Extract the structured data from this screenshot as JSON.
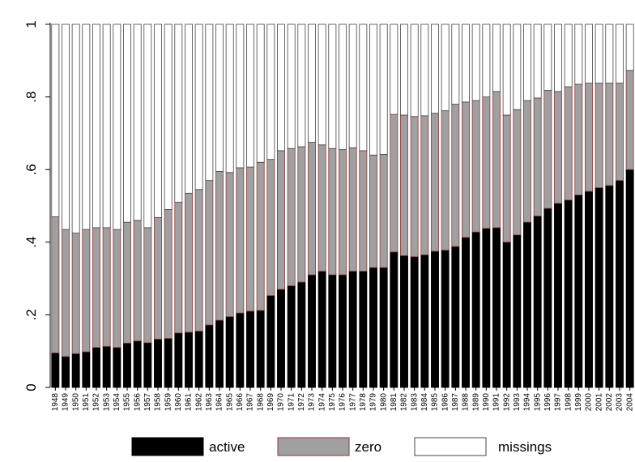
{
  "chart_data": {
    "type": "stacked_bar",
    "categories": [
      "1948",
      "1949",
      "1950",
      "1951",
      "1952",
      "1953",
      "1954",
      "1955",
      "1956",
      "1957",
      "1958",
      "1959",
      "1960",
      "1961",
      "1962",
      "1963",
      "1964",
      "1965",
      "1966",
      "1967",
      "1968",
      "1969",
      "1970",
      "1971",
      "1972",
      "1973",
      "1974",
      "1975",
      "1976",
      "1977",
      "1978",
      "1979",
      "1980",
      "1981",
      "1982",
      "1983",
      "1984",
      "1985",
      "1986",
      "1987",
      "1988",
      "1989",
      "1990",
      "1991",
      "1992",
      "1993",
      "1994",
      "1995",
      "1996",
      "1997",
      "1998",
      "1999",
      "2000",
      "2001",
      "2002",
      "2003",
      "2004"
    ],
    "series": [
      {
        "name": "active",
        "color": "#000000",
        "edgecolor": "#000000",
        "values": [
          0.095,
          0.085,
          0.093,
          0.098,
          0.11,
          0.113,
          0.11,
          0.122,
          0.128,
          0.123,
          0.133,
          0.135,
          0.15,
          0.152,
          0.155,
          0.172,
          0.185,
          0.195,
          0.205,
          0.21,
          0.212,
          0.253,
          0.27,
          0.28,
          0.29,
          0.31,
          0.32,
          0.31,
          0.31,
          0.32,
          0.32,
          0.33,
          0.33,
          0.373,
          0.363,
          0.36,
          0.365,
          0.375,
          0.378,
          0.388,
          0.413,
          0.428,
          0.438,
          0.44,
          0.4,
          0.42,
          0.455,
          0.472,
          0.493,
          0.507,
          0.516,
          0.53,
          0.54,
          0.55,
          0.556,
          0.57,
          0.6
        ]
      },
      {
        "name": "zero",
        "color": "#a0a0a0",
        "edgecolor": "#8b3a3a",
        "values": [
          0.375,
          0.35,
          0.332,
          0.337,
          0.33,
          0.327,
          0.325,
          0.333,
          0.332,
          0.317,
          0.335,
          0.355,
          0.36,
          0.383,
          0.39,
          0.398,
          0.41,
          0.397,
          0.4,
          0.397,
          0.408,
          0.375,
          0.382,
          0.378,
          0.373,
          0.365,
          0.348,
          0.348,
          0.345,
          0.34,
          0.332,
          0.31,
          0.312,
          0.379,
          0.387,
          0.386,
          0.383,
          0.38,
          0.384,
          0.392,
          0.373,
          0.362,
          0.362,
          0.375,
          0.35,
          0.345,
          0.335,
          0.325,
          0.325,
          0.308,
          0.312,
          0.305,
          0.298,
          0.288,
          0.282,
          0.268,
          0.273
        ]
      },
      {
        "name": "missings",
        "color": "#ffffff",
        "edgecolor": "#444444",
        "values": [
          0.53,
          0.565,
          0.575,
          0.565,
          0.56,
          0.56,
          0.565,
          0.545,
          0.54,
          0.56,
          0.532,
          0.51,
          0.49,
          0.465,
          0.455,
          0.43,
          0.405,
          0.408,
          0.395,
          0.393,
          0.38,
          0.372,
          0.348,
          0.342,
          0.337,
          0.325,
          0.332,
          0.342,
          0.345,
          0.34,
          0.348,
          0.36,
          0.358,
          0.248,
          0.25,
          0.254,
          0.252,
          0.245,
          0.238,
          0.22,
          0.214,
          0.21,
          0.2,
          0.185,
          0.25,
          0.235,
          0.21,
          0.203,
          0.182,
          0.185,
          0.172,
          0.165,
          0.162,
          0.162,
          0.162,
          0.162,
          0.127
        ]
      }
    ],
    "ylim": [
      0,
      1
    ],
    "yticks": [
      0,
      {
        "value": 0.2,
        "label": ".2"
      },
      {
        "value": 0.4,
        "label": ".4"
      },
      {
        "value": 0.6,
        "label": ".6"
      },
      {
        "value": 0.8,
        "label": ".8"
      },
      1
    ],
    "grid": false,
    "legend": "bottom"
  }
}
